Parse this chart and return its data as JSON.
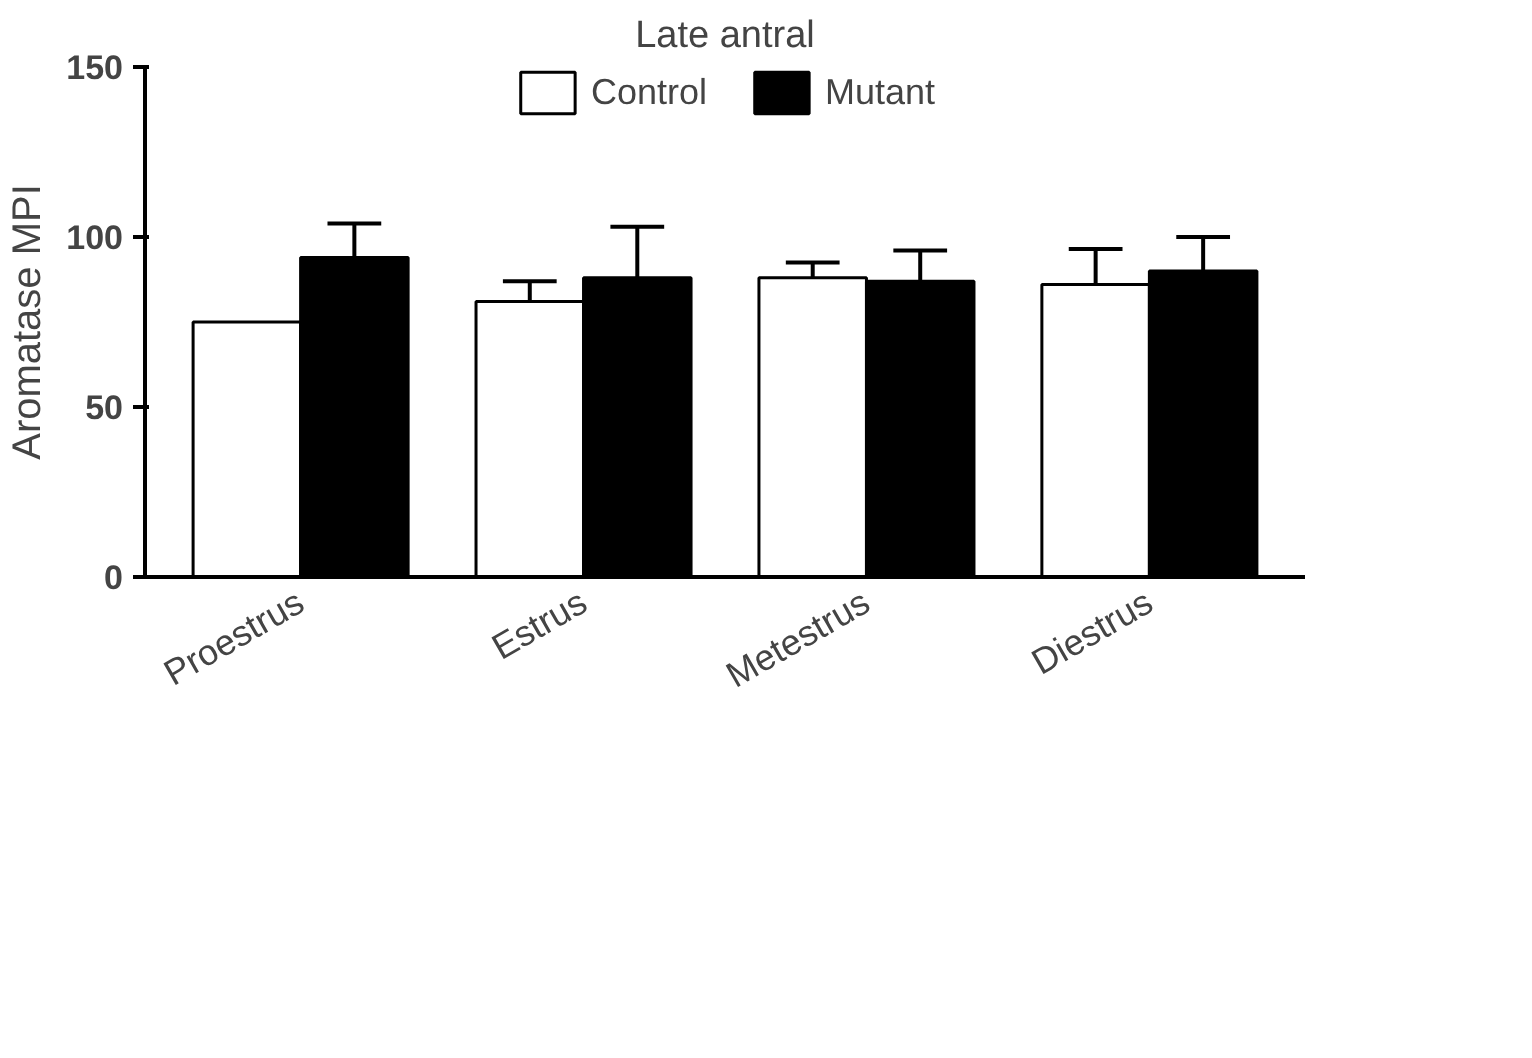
{
  "chart_data": {
    "type": "bar",
    "title": "Late antral",
    "ylabel": "Aromatase MPI",
    "categories": [
      "Proestrus",
      "Estrus",
      "Metestrus",
      "Diestrus"
    ],
    "series": [
      {
        "name": "Control",
        "color": "#ffffff",
        "values": [
          75,
          81,
          88,
          86
        ],
        "errors": [
          null,
          6,
          4.5,
          10.5
        ]
      },
      {
        "name": "Mutant",
        "color": "#000000",
        "values": [
          94,
          88,
          87,
          90
        ],
        "errors": [
          10,
          15,
          9,
          10
        ]
      }
    ],
    "ylim": [
      0,
      150
    ],
    "yticks": [
      0,
      50,
      100,
      150
    ],
    "grid": false,
    "legend": "top"
  }
}
